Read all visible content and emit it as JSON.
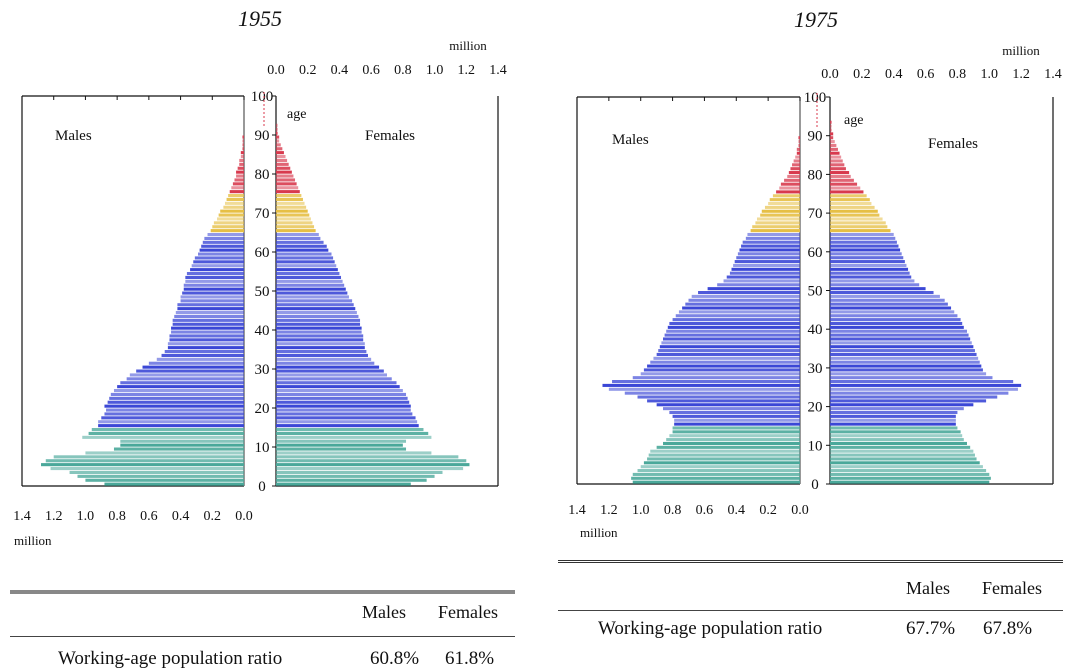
{
  "chart_data": [
    {
      "type": "bar",
      "subtype": "population-pyramid",
      "title": "1955",
      "unit_label": "million",
      "y_axis_label": "age",
      "left_series": "Males",
      "right_series": "Females",
      "age_ticks": [
        "0",
        "10",
        "20",
        "30",
        "40",
        "50",
        "60",
        "70",
        "80",
        "90",
        "100"
      ],
      "top_ticks": [
        "0.0",
        "0.2",
        "0.4",
        "0.6",
        "0.8",
        "1.0",
        "1.2",
        "1.4"
      ],
      "bottom_ticks": [
        "1.4",
        "1.2",
        "1.0",
        "0.8",
        "0.6",
        "0.4",
        "0.2",
        "0.0"
      ],
      "xlim": [
        0,
        1.4
      ],
      "ylim": [
        0,
        100
      ],
      "age_bands": [
        {
          "from": 0,
          "to": 14,
          "color": "#4aa89a"
        },
        {
          "from": 15,
          "to": 64,
          "color": "#3b47d6"
        },
        {
          "from": 65,
          "to": 74,
          "color": "#e6bf45"
        },
        {
          "from": 75,
          "to": 100,
          "color": "#d83a4e"
        }
      ],
      "males": [
        0.88,
        1.0,
        1.05,
        1.1,
        1.22,
        1.28,
        1.25,
        1.2,
        1.0,
        0.82,
        0.78,
        0.78,
        1.02,
        0.98,
        0.96,
        0.92,
        0.92,
        0.9,
        0.88,
        0.87,
        0.88,
        0.86,
        0.85,
        0.84,
        0.82,
        0.8,
        0.78,
        0.74,
        0.72,
        0.68,
        0.64,
        0.6,
        0.55,
        0.52,
        0.5,
        0.48,
        0.48,
        0.47,
        0.47,
        0.46,
        0.46,
        0.45,
        0.45,
        0.44,
        0.43,
        0.42,
        0.42,
        0.4,
        0.4,
        0.39,
        0.38,
        0.38,
        0.37,
        0.37,
        0.36,
        0.34,
        0.33,
        0.32,
        0.31,
        0.29,
        0.28,
        0.27,
        0.26,
        0.25,
        0.23,
        0.21,
        0.2,
        0.19,
        0.17,
        0.16,
        0.15,
        0.13,
        0.12,
        0.11,
        0.1,
        0.09,
        0.08,
        0.07,
        0.06,
        0.05,
        0.05,
        0.04,
        0.03,
        0.03,
        0.02,
        0.02,
        0.01,
        0.01,
        0.01,
        0.01,
        0.0,
        0.0,
        0.0,
        0.0,
        0.0,
        0.0,
        0.0,
        0.0,
        0.0,
        0.0,
        0.0
      ],
      "females": [
        0.85,
        0.95,
        1.0,
        1.05,
        1.18,
        1.22,
        1.2,
        1.15,
        0.98,
        0.82,
        0.8,
        0.82,
        0.98,
        0.96,
        0.93,
        0.9,
        0.89,
        0.88,
        0.86,
        0.85,
        0.85,
        0.84,
        0.83,
        0.82,
        0.8,
        0.78,
        0.76,
        0.73,
        0.7,
        0.68,
        0.65,
        0.62,
        0.6,
        0.58,
        0.57,
        0.56,
        0.56,
        0.55,
        0.55,
        0.54,
        0.54,
        0.53,
        0.53,
        0.52,
        0.51,
        0.5,
        0.49,
        0.48,
        0.46,
        0.45,
        0.44,
        0.43,
        0.42,
        0.41,
        0.4,
        0.39,
        0.38,
        0.37,
        0.36,
        0.35,
        0.33,
        0.32,
        0.3,
        0.28,
        0.27,
        0.25,
        0.24,
        0.23,
        0.22,
        0.21,
        0.2,
        0.19,
        0.18,
        0.17,
        0.16,
        0.15,
        0.14,
        0.13,
        0.12,
        0.11,
        0.1,
        0.09,
        0.08,
        0.07,
        0.06,
        0.05,
        0.04,
        0.03,
        0.02,
        0.02,
        0.01,
        0.01,
        0.01,
        0.0,
        0.0,
        0.0,
        0.0,
        0.0,
        0.0,
        0.0,
        0.0
      ],
      "table": {
        "col1": "Males",
        "col2": "Females",
        "row_label": "Working-age population ratio",
        "males": "60.8%",
        "females": "61.8%"
      }
    },
    {
      "type": "bar",
      "subtype": "population-pyramid",
      "title": "1975",
      "unit_label": "million",
      "y_axis_label": "age",
      "left_series": "Males",
      "right_series": "Females",
      "age_ticks": [
        "0",
        "10",
        "20",
        "30",
        "40",
        "50",
        "60",
        "70",
        "80",
        "90",
        "100"
      ],
      "top_ticks": [
        "0.0",
        "0.2",
        "0.4",
        "0.6",
        "0.8",
        "1.0",
        "1.2",
        "1.4"
      ],
      "bottom_ticks": [
        "1.4",
        "1.2",
        "1.0",
        "0.8",
        "0.6",
        "0.4",
        "0.2",
        "0.0"
      ],
      "xlim": [
        0,
        1.4
      ],
      "ylim": [
        0,
        100
      ],
      "age_bands": [
        {
          "from": 0,
          "to": 14,
          "color": "#4aa89a"
        },
        {
          "from": 15,
          "to": 64,
          "color": "#3b47d6"
        },
        {
          "from": 65,
          "to": 74,
          "color": "#e6bf45"
        },
        {
          "from": 75,
          "to": 100,
          "color": "#d83a4e"
        }
      ],
      "males": [
        1.05,
        1.06,
        1.05,
        1.02,
        1.0,
        0.98,
        0.96,
        0.95,
        0.94,
        0.9,
        0.86,
        0.84,
        0.82,
        0.8,
        0.8,
        0.79,
        0.79,
        0.8,
        0.82,
        0.86,
        0.9,
        0.96,
        1.02,
        1.1,
        1.2,
        1.24,
        1.18,
        1.05,
        1.0,
        0.98,
        0.96,
        0.94,
        0.92,
        0.9,
        0.89,
        0.88,
        0.87,
        0.86,
        0.85,
        0.84,
        0.83,
        0.82,
        0.8,
        0.78,
        0.76,
        0.74,
        0.72,
        0.7,
        0.68,
        0.64,
        0.58,
        0.52,
        0.48,
        0.46,
        0.44,
        0.43,
        0.42,
        0.41,
        0.4,
        0.39,
        0.38,
        0.37,
        0.36,
        0.34,
        0.33,
        0.31,
        0.3,
        0.28,
        0.27,
        0.25,
        0.24,
        0.22,
        0.2,
        0.19,
        0.17,
        0.15,
        0.13,
        0.12,
        0.1,
        0.08,
        0.07,
        0.06,
        0.05,
        0.04,
        0.03,
        0.02,
        0.02,
        0.01,
        0.01,
        0.01,
        0.0,
        0.0,
        0.0,
        0.0,
        0.0,
        0.0,
        0.0,
        0.0,
        0.0,
        0.0,
        0.0
      ],
      "females": [
        1.0,
        1.01,
        1.0,
        0.98,
        0.96,
        0.94,
        0.92,
        0.91,
        0.9,
        0.88,
        0.86,
        0.84,
        0.83,
        0.82,
        0.8,
        0.79,
        0.79,
        0.79,
        0.8,
        0.84,
        0.9,
        0.98,
        1.05,
        1.12,
        1.18,
        1.2,
        1.15,
        1.02,
        0.98,
        0.96,
        0.95,
        0.94,
        0.93,
        0.92,
        0.91,
        0.9,
        0.89,
        0.88,
        0.87,
        0.86,
        0.84,
        0.83,
        0.82,
        0.8,
        0.78,
        0.76,
        0.74,
        0.72,
        0.69,
        0.65,
        0.6,
        0.56,
        0.53,
        0.51,
        0.5,
        0.49,
        0.48,
        0.47,
        0.46,
        0.45,
        0.44,
        0.43,
        0.42,
        0.41,
        0.4,
        0.38,
        0.36,
        0.35,
        0.33,
        0.31,
        0.3,
        0.28,
        0.26,
        0.25,
        0.23,
        0.21,
        0.19,
        0.17,
        0.15,
        0.13,
        0.12,
        0.1,
        0.09,
        0.08,
        0.07,
        0.06,
        0.05,
        0.04,
        0.03,
        0.02,
        0.02,
        0.01,
        0.01,
        0.01,
        0.0,
        0.0,
        0.0,
        0.0,
        0.0,
        0.0,
        0.0
      ],
      "table": {
        "col1": "Males",
        "col2": "Females",
        "row_label": "Working-age population ratio",
        "males": "67.7%",
        "females": "67.8%"
      }
    }
  ]
}
